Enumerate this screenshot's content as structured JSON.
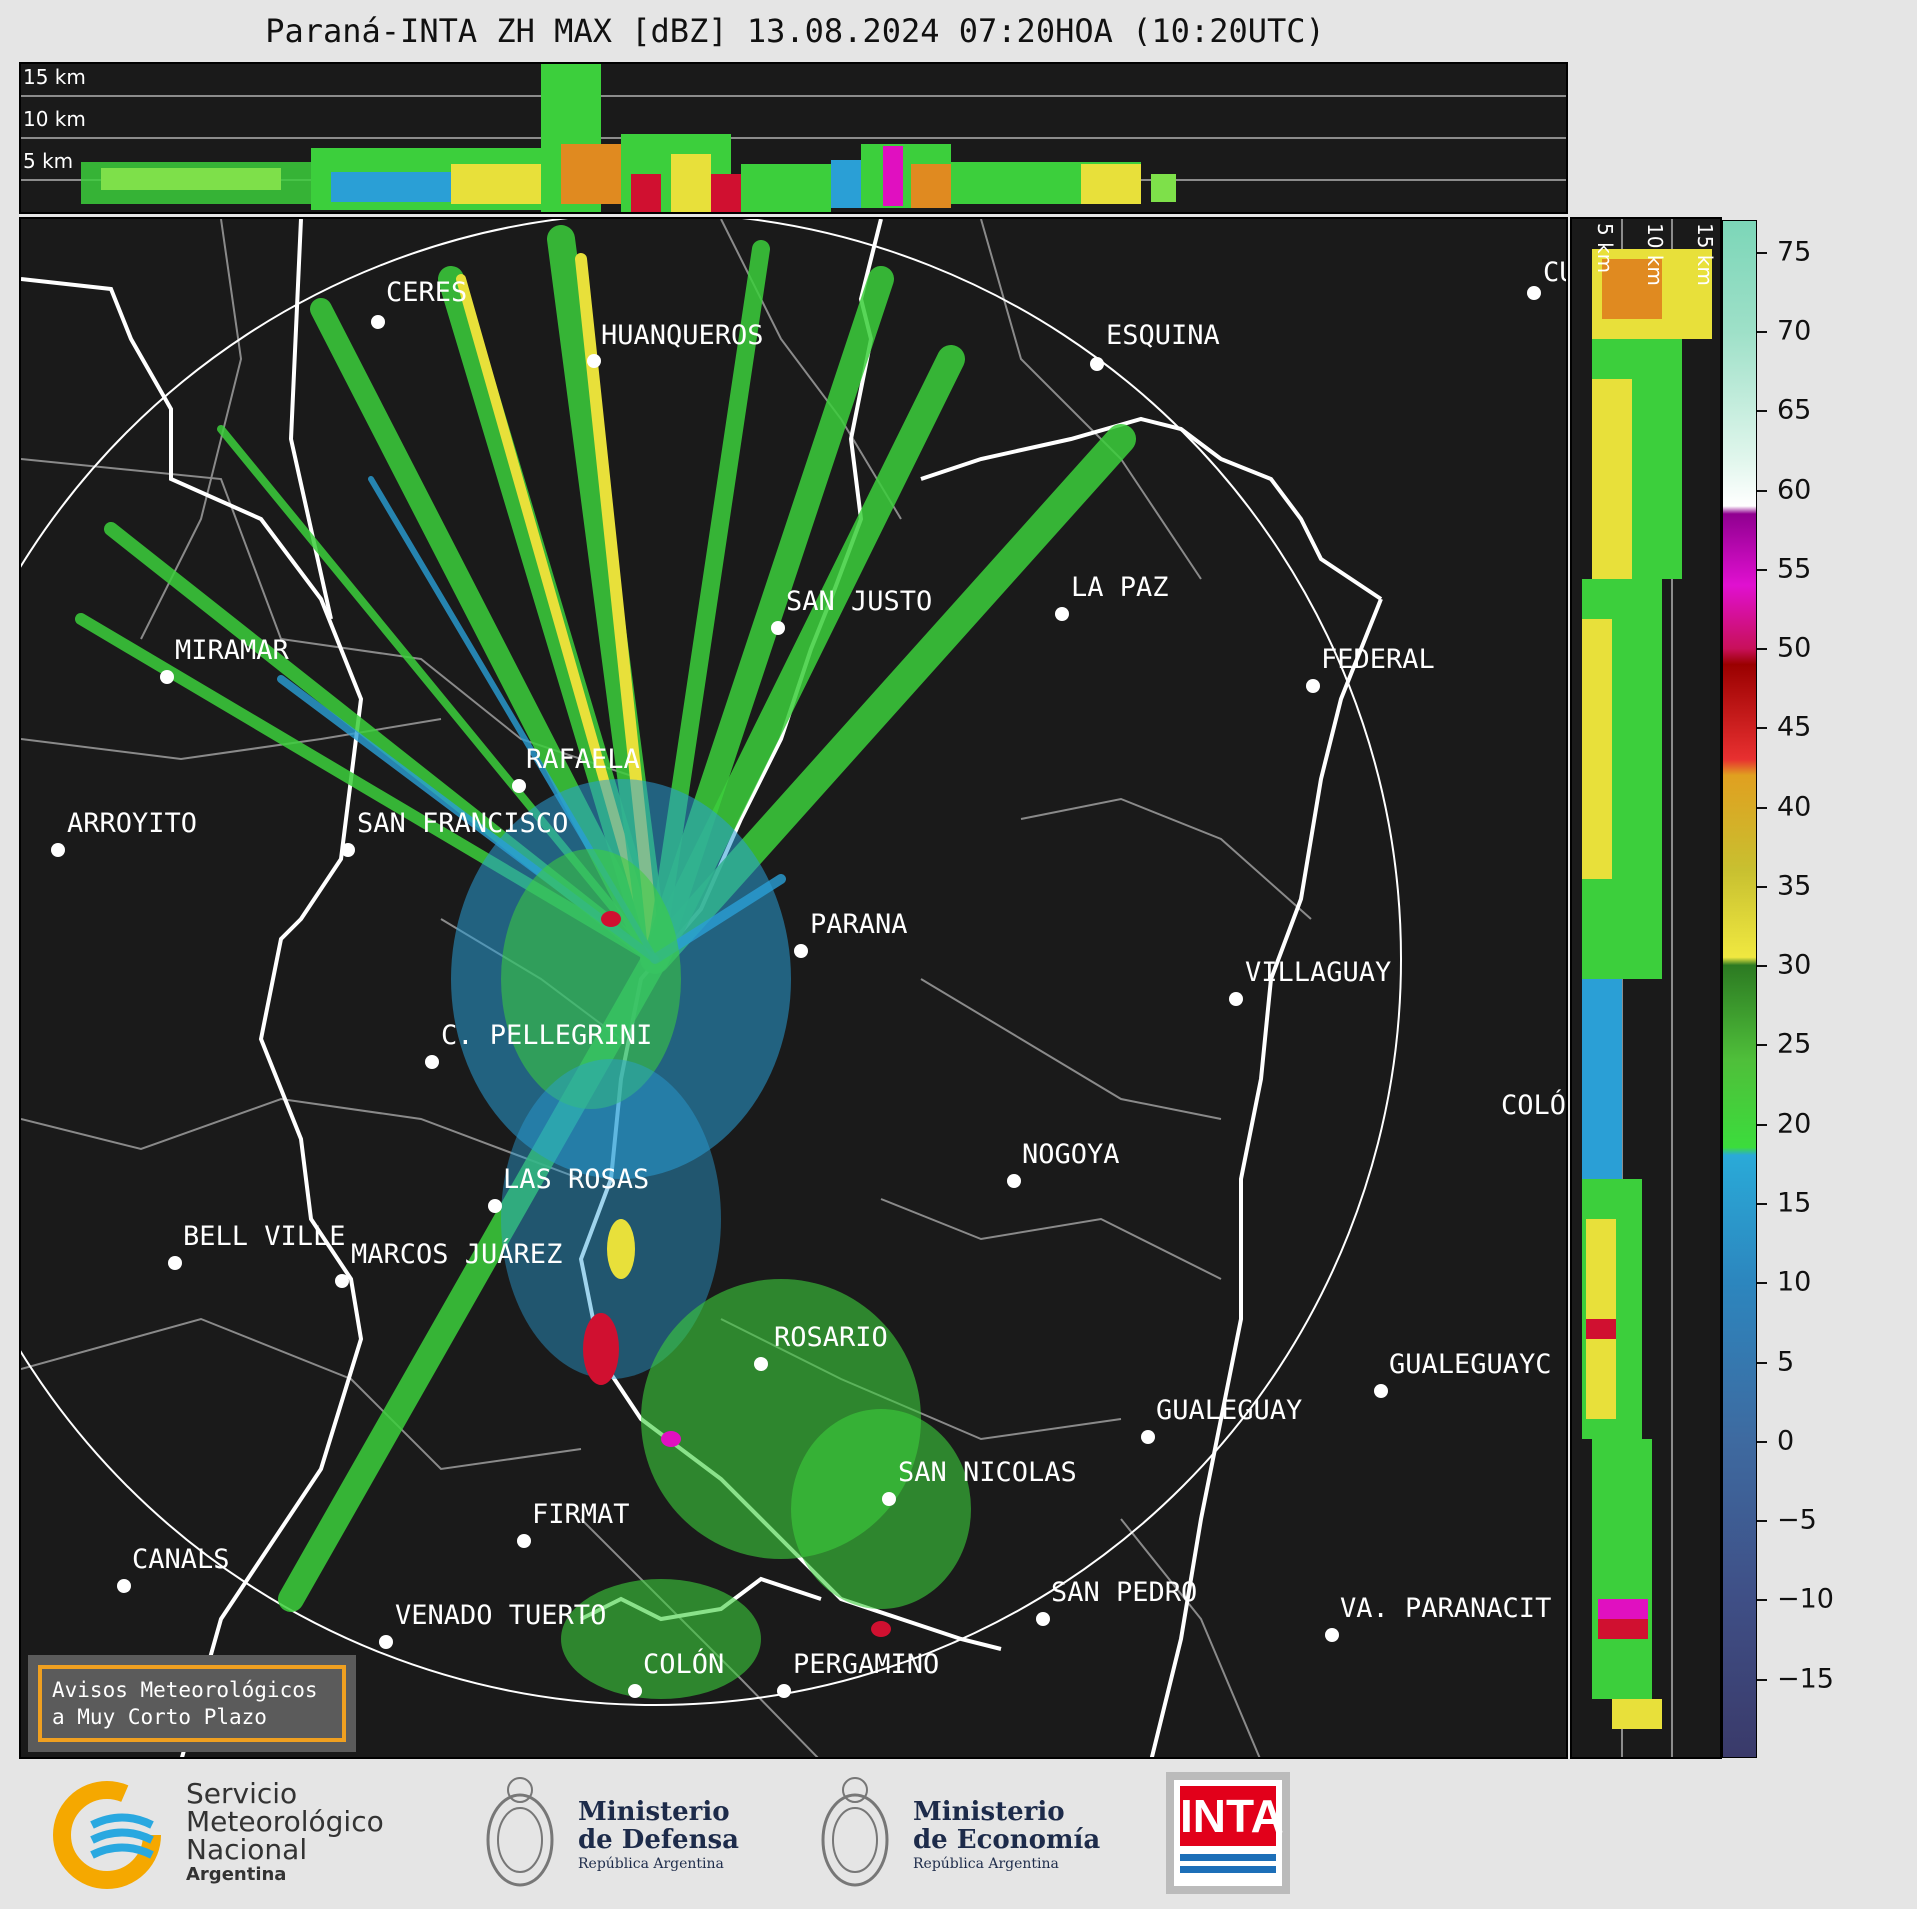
{
  "title": "Paraná-INTA ZH MAX [dBZ] 13.08.2024 07:20HOA (10:20UTC)",
  "top_panel": {
    "km_labels": [
      "15 km",
      "10 km",
      "5 km"
    ]
  },
  "side_panel": {
    "km_labels": [
      "5 km",
      "10 km",
      "15 km"
    ]
  },
  "colorbar": {
    "ticks": [
      "75",
      "70",
      "65",
      "60",
      "55",
      "50",
      "45",
      "40",
      "35",
      "30",
      "25",
      "20",
      "15",
      "10",
      "5",
      "0",
      "−5",
      "−10",
      "−15"
    ],
    "range": [
      -20,
      77
    ]
  },
  "cities": [
    {
      "name": "CERES"
    },
    {
      "name": "HUANQUEROS"
    },
    {
      "name": "ESQUINA"
    },
    {
      "name": "CU"
    },
    {
      "name": "LA PAZ"
    },
    {
      "name": "SAN JUSTO"
    },
    {
      "name": "FEDERAL"
    },
    {
      "name": "MIRAMAR"
    },
    {
      "name": "RAFAELA"
    },
    {
      "name": "ARROYITO"
    },
    {
      "name": "SAN FRANCISCO"
    },
    {
      "name": "PARANA"
    },
    {
      "name": "VILLAGUAY"
    },
    {
      "name": "C. PELLEGRINI"
    },
    {
      "name": "COLÓ"
    },
    {
      "name": "NOGOYA"
    },
    {
      "name": "LAS ROSAS"
    },
    {
      "name": "BELL VILLE"
    },
    {
      "name": "MARCOS JUÁREZ"
    },
    {
      "name": "ROSARIO"
    },
    {
      "name": "GUALEGUAYC"
    },
    {
      "name": "GUALEGUAY"
    },
    {
      "name": "SAN NICOLAS"
    },
    {
      "name": "FIRMAT"
    },
    {
      "name": "CANALS"
    },
    {
      "name": "SAN PEDRO"
    },
    {
      "name": "VA. PARANACIT"
    },
    {
      "name": "VENADO TUERTO"
    },
    {
      "name": "COLÓN"
    },
    {
      "name": "PERGAMINO"
    }
  ],
  "warning": {
    "line1": "Avisos Meteorológicos",
    "line2": "a Muy Corto Plazo"
  },
  "logos": {
    "smn": {
      "line1": "Servicio",
      "line2": "Meteorológico",
      "line3": "Nacional",
      "line4": "Argentina"
    },
    "defensa": {
      "line1": "Ministerio",
      "line2": "de Defensa",
      "line3": "República Argentina"
    },
    "economia": {
      "line1": "Ministerio",
      "line2": "de Economía",
      "line3": "República Argentina"
    },
    "inta": {
      "text": "INTA"
    }
  },
  "colors": {
    "background": "#1a1a1a",
    "coast": "#ffffff",
    "border": "#888888",
    "weak": "#2a9fd6",
    "moderate": "#3ccf3c",
    "strong": "#e8e03a",
    "heavy": "#e08a20",
    "extreme": "#d01030",
    "accent_warning": "#f0a020",
    "smn_yellow": "#f5a800",
    "smn_blue": "#29a8e0",
    "inta_red": "#e2001a"
  }
}
